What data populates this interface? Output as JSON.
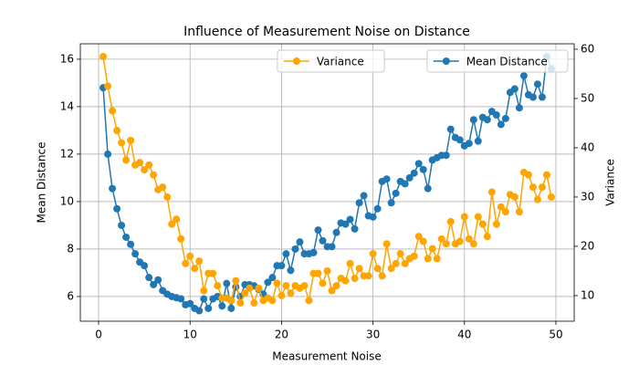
{
  "chart_data": {
    "type": "line",
    "title": "Influence of Measurement Noise on Distance",
    "x_label": "Measurement Noise",
    "y_label": "Mean Distance",
    "y2_label": "Variance",
    "x": [
      0.5,
      1,
      1.5,
      2,
      2.5,
      3,
      3.5,
      4,
      4.5,
      5,
      5.5,
      6,
      6.5,
      7,
      7.5,
      8,
      8.5,
      9,
      9.5,
      10,
      10.5,
      11,
      11.5,
      12,
      12.5,
      13,
      13.5,
      14,
      14.5,
      15,
      15.5,
      16,
      16.5,
      17,
      17.5,
      18,
      18.5,
      19,
      19.5,
      20,
      20.5,
      21,
      21.5,
      22,
      22.5,
      23,
      23.5,
      24,
      24.5,
      25,
      25.5,
      26,
      26.5,
      27,
      27.5,
      28,
      28.5,
      29,
      29.5,
      30,
      30.5,
      31,
      31.5,
      32,
      32.5,
      33,
      33.5,
      34,
      34.5,
      35,
      35.5,
      36,
      36.5,
      37,
      37.5,
      38,
      38.5,
      39,
      39.5,
      40,
      40.5,
      41,
      41.5,
      42,
      42.5,
      43,
      43.5,
      44,
      44.5,
      45,
      45.5,
      46,
      46.5,
      47,
      47.5,
      48,
      48.5,
      49,
      49.5
    ],
    "series": [
      {
        "name": "Mean Distance",
        "color": "#1f77b4",
        "axis": "y",
        "legend_loc": "upper right",
        "values": [
          14.8,
          12.0,
          10.55,
          9.7,
          9.0,
          8.5,
          8.2,
          7.8,
          7.45,
          7.3,
          6.8,
          6.5,
          6.7,
          6.25,
          6.1,
          6.0,
          5.95,
          5.9,
          5.65,
          5.7,
          5.5,
          5.4,
          5.9,
          5.5,
          5.9,
          6.0,
          5.6,
          6.55,
          5.5,
          6.4,
          6.0,
          6.5,
          6.5,
          6.45,
          6.3,
          6.1,
          6.6,
          6.8,
          7.3,
          7.3,
          7.8,
          7.1,
          8.0,
          8.3,
          7.8,
          7.8,
          7.85,
          8.8,
          8.35,
          8.1,
          8.1,
          8.7,
          9.1,
          9.05,
          9.25,
          8.85,
          9.95,
          10.25,
          9.4,
          9.35,
          9.7,
          10.85,
          10.95,
          9.95,
          10.35,
          10.85,
          10.75,
          11.0,
          11.2,
          11.6,
          11.35,
          10.55,
          11.75,
          11.85,
          11.95,
          11.95,
          13.05,
          12.7,
          12.6,
          12.35,
          12.45,
          13.45,
          12.55,
          13.55,
          13.45,
          13.8,
          13.65,
          13.25,
          13.5,
          14.6,
          14.75,
          13.95,
          15.3,
          14.5,
          14.4,
          14.95,
          14.4,
          16.1,
          15.6
        ]
      },
      {
        "name": "Variance",
        "color": "#ffa500",
        "axis": "y2",
        "legend_loc": "upper center",
        "values": [
          58.5,
          52.5,
          47.5,
          43.5,
          41,
          37.5,
          41.5,
          36.5,
          37,
          35.5,
          36.5,
          34.5,
          31.5,
          32,
          30,
          24.5,
          25.5,
          21.5,
          16.5,
          18,
          15.5,
          17,
          11,
          14.5,
          14.5,
          12,
          9.5,
          9.5,
          9,
          13,
          8.5,
          10.5,
          11.5,
          8.5,
          11.5,
          9,
          9.5,
          9,
          12.5,
          10,
          12,
          10.5,
          12,
          11.5,
          12,
          9,
          14.5,
          14.5,
          12.5,
          15,
          11,
          12,
          13.5,
          13,
          16.5,
          13.5,
          15.5,
          14,
          14,
          18.5,
          15.5,
          14,
          20.5,
          15.5,
          16.5,
          18.5,
          16.5,
          17.5,
          18,
          22,
          21,
          17.5,
          19.5,
          17.5,
          21.5,
          20.5,
          25,
          20.5,
          21,
          26,
          21.5,
          20.5,
          26,
          24.5,
          22,
          31,
          24.5,
          28,
          27,
          30.5,
          30,
          27,
          35,
          34.5,
          32,
          29.5,
          32,
          34.5,
          30
        ]
      }
    ],
    "xlim": [
      -2,
      52
    ],
    "xticks": [
      0,
      10,
      20,
      30,
      40,
      50
    ],
    "ylim": [
      4.96,
      16.65
    ],
    "yticks": [
      6,
      8,
      10,
      12,
      14,
      16
    ],
    "y2lim": [
      4.8,
      61.1
    ],
    "y2ticks": [
      10,
      20,
      30,
      40,
      50,
      60
    ],
    "grid": true
  }
}
